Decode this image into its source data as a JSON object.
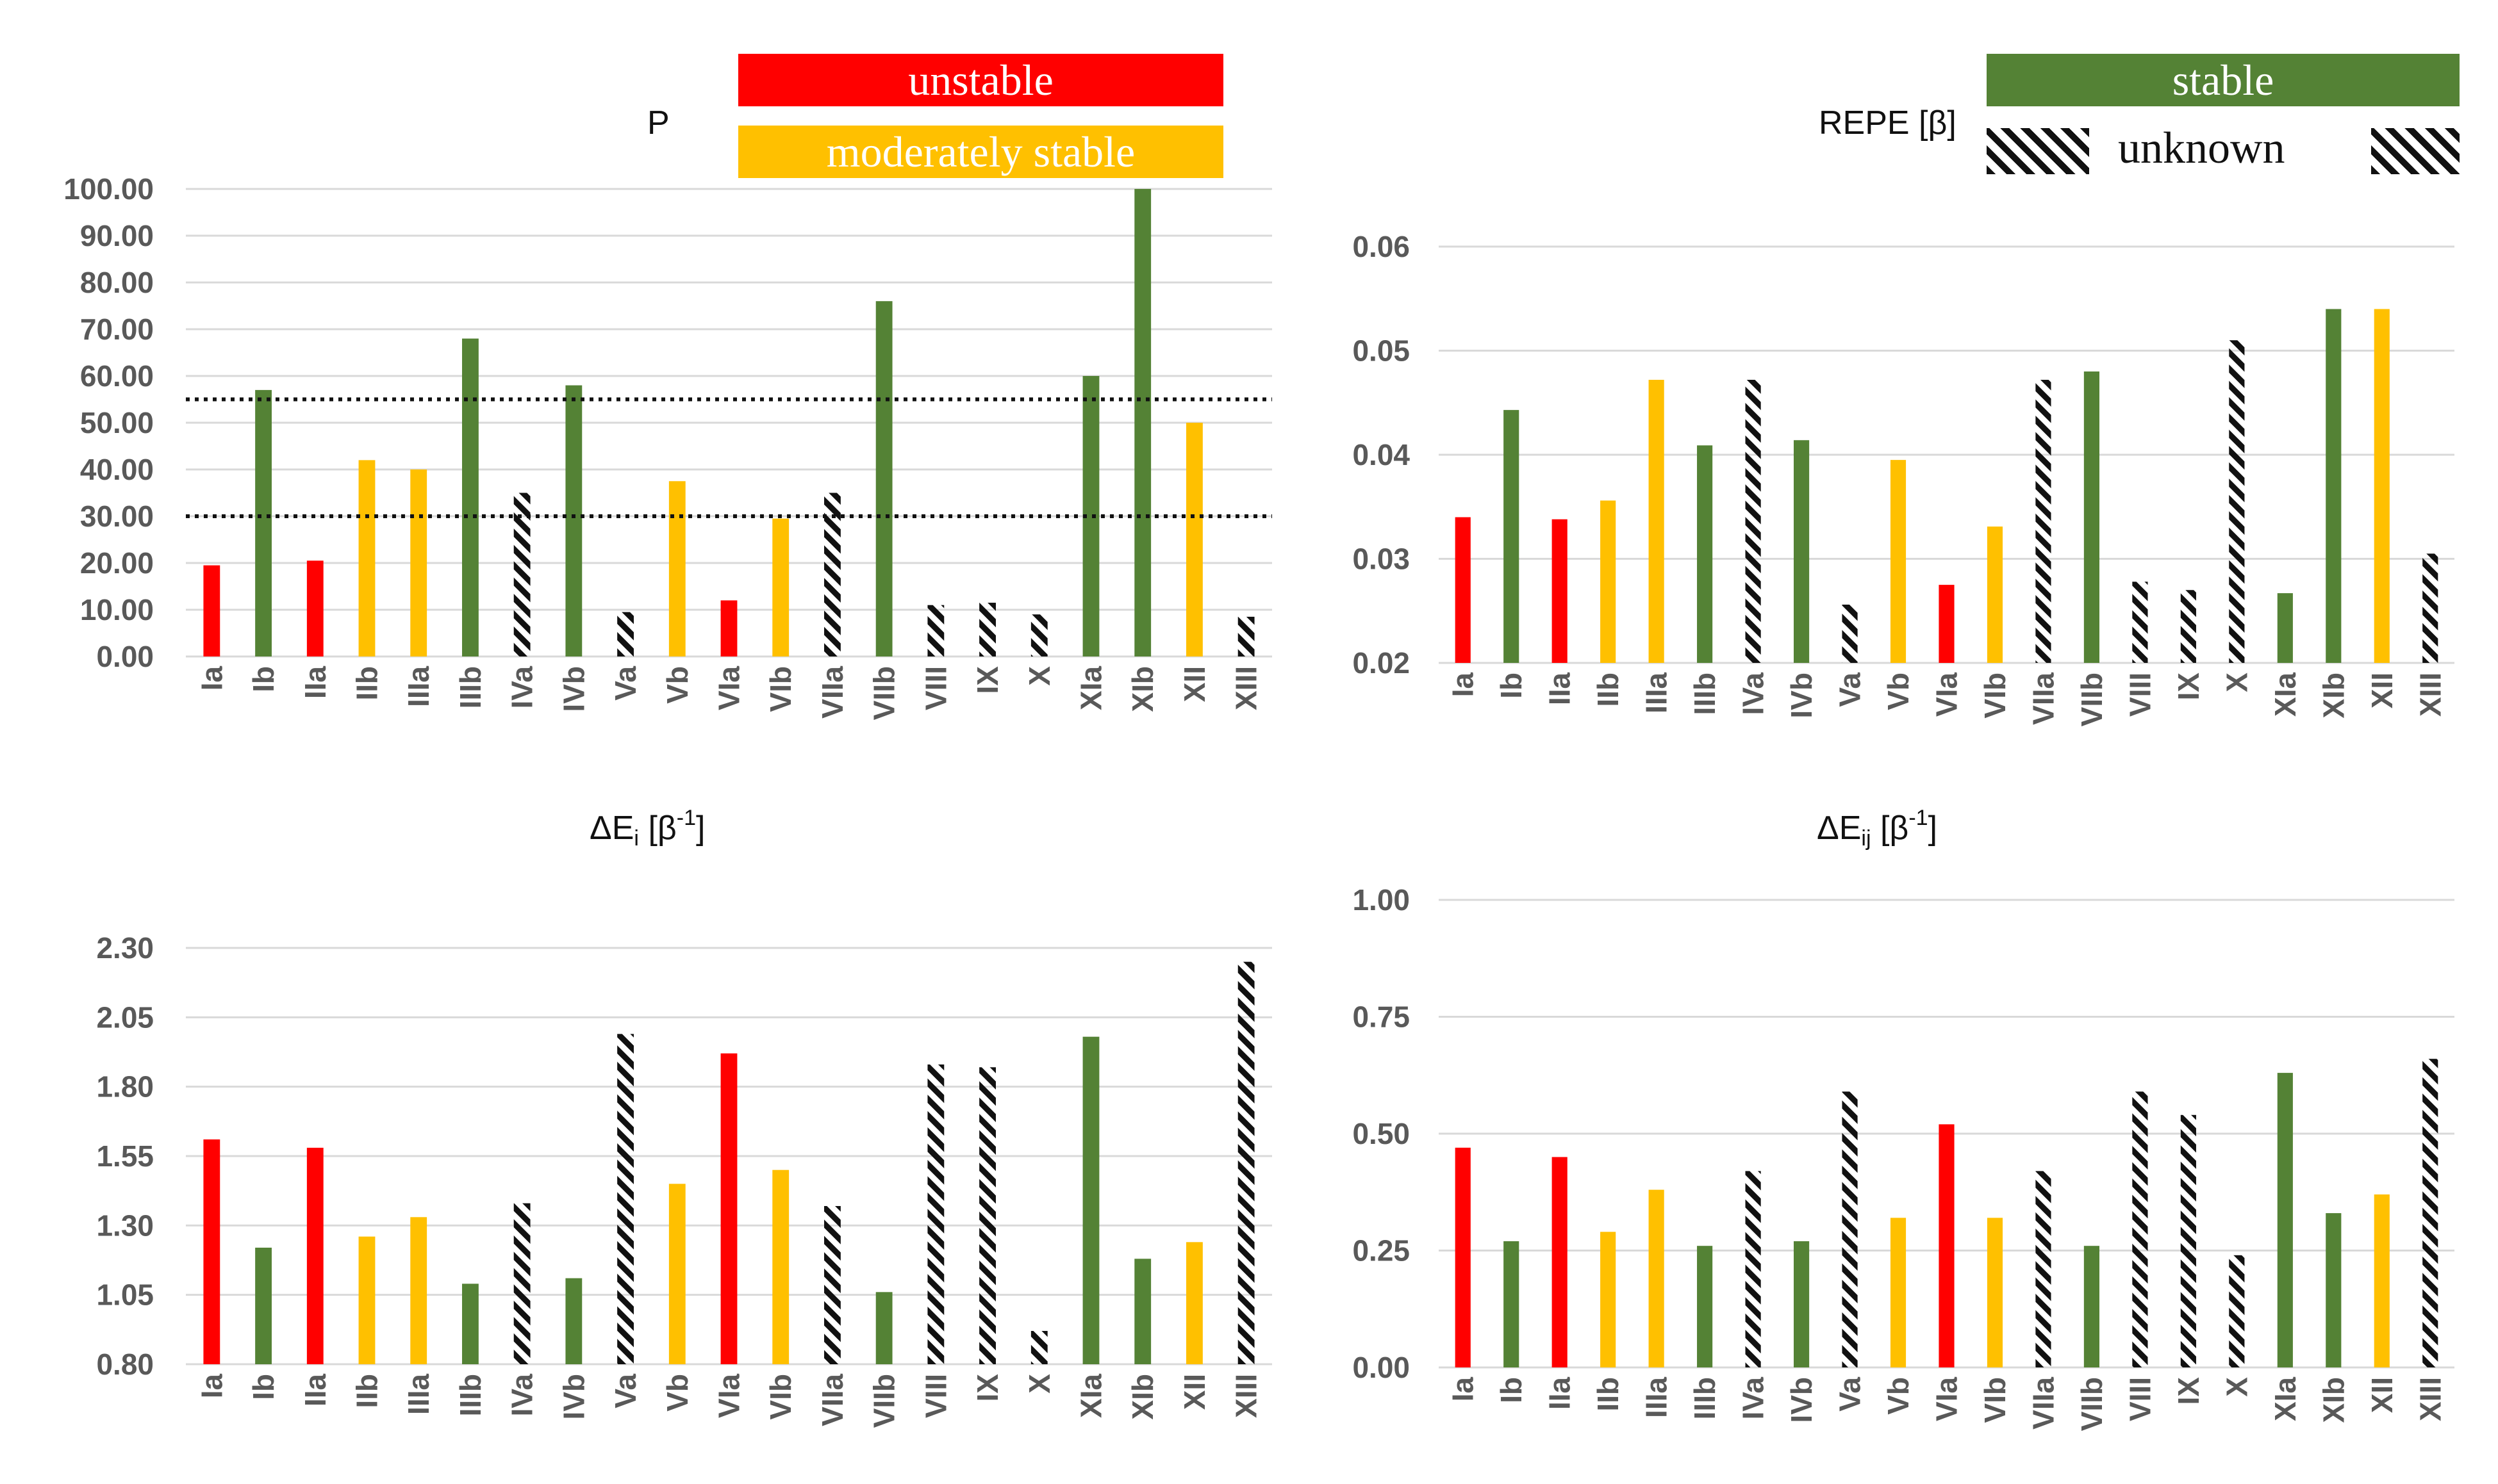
{
  "legend": {
    "unstable": "unstable",
    "moderately_stable": "moderately stable",
    "stable": "stable",
    "unknown": "unknown",
    "colors": {
      "unstable": "#ff0000",
      "moderate": "#ffc000",
      "stable": "#548235",
      "unknown": "#111111"
    }
  },
  "titles": {
    "p": "P",
    "repe": "REPE [β]",
    "dei_base": "ΔE",
    "dei_sub": "i",
    "deij_base": "ΔE",
    "deij_sub": "ij",
    "unit_open": "[β",
    "unit_sup": "-1",
    "unit_close": "]"
  },
  "chart_data": [
    {
      "id": "p",
      "type": "bar",
      "title": "P",
      "categories": [
        "Ia",
        "Ib",
        "IIa",
        "IIb",
        "IIIa",
        "IIIb",
        "IVa",
        "IVb",
        "Va",
        "Vb",
        "VIa",
        "VIb",
        "VIIa",
        "VIIb",
        "VIII",
        "IX",
        "X",
        "XIa",
        "XIb",
        "XII",
        "XIII"
      ],
      "values": [
        19.5,
        57,
        20.5,
        42,
        40,
        68,
        35,
        58,
        9.5,
        37.5,
        12,
        29.5,
        35,
        76,
        11,
        11.5,
        9,
        60,
        100,
        50,
        8.5
      ],
      "classes": [
        "unstable",
        "stable",
        "unstable",
        "moderate",
        "moderate",
        "stable",
        "unknown",
        "stable",
        "unknown",
        "moderate",
        "unstable",
        "moderate",
        "unknown",
        "stable",
        "unknown",
        "unknown",
        "unknown",
        "stable",
        "stable",
        "moderate",
        "unknown"
      ],
      "ylim": [
        0,
        100
      ],
      "yticks": [
        "0.00",
        "10.00",
        "20.00",
        "30.00",
        "40.00",
        "50.00",
        "60.00",
        "70.00",
        "80.00",
        "90.00",
        "100.00"
      ],
      "reference_lines": [
        30,
        55
      ],
      "xlabel": "",
      "ylabel": ""
    },
    {
      "id": "repe",
      "type": "bar",
      "title": "REPE [β]",
      "categories": [
        "Ia",
        "Ib",
        "IIa",
        "IIb",
        "IIIa",
        "IIIb",
        "IVa",
        "IVb",
        "Va",
        "Vb",
        "VIa",
        "VIb",
        "VIIa",
        "VIIb",
        "VIII",
        "IX",
        "X",
        "XIa",
        "XIb",
        "XII",
        "XIII"
      ],
      "values": [
        0.034,
        0.0443,
        0.0338,
        0.0356,
        0.0472,
        0.0409,
        0.0472,
        0.0414,
        0.0256,
        0.0395,
        0.0275,
        0.0331,
        0.0472,
        0.048,
        0.0278,
        0.027,
        0.051,
        0.0267,
        0.054,
        0.054,
        0.0305
      ],
      "classes": [
        "unstable",
        "stable",
        "unstable",
        "moderate",
        "moderate",
        "stable",
        "unknown",
        "stable",
        "unknown",
        "moderate",
        "unstable",
        "moderate",
        "unknown",
        "stable",
        "unknown",
        "unknown",
        "unknown",
        "stable",
        "stable",
        "moderate",
        "unknown"
      ],
      "ylim": [
        0.02,
        0.06
      ],
      "yticks": [
        "0.02",
        "0.03",
        "0.04",
        "0.05",
        "0.06"
      ],
      "xlabel": "",
      "ylabel": ""
    },
    {
      "id": "dei",
      "type": "bar",
      "title": "ΔEi [β-1]",
      "categories": [
        "Ia",
        "Ib",
        "IIa",
        "IIb",
        "IIIa",
        "IIIb",
        "IVa",
        "IVb",
        "Va",
        "Vb",
        "VIa",
        "VIb",
        "VIIa",
        "VIIb",
        "VIII",
        "IX",
        "X",
        "XIa",
        "XIb",
        "XII",
        "XIII"
      ],
      "values": [
        1.61,
        1.22,
        1.58,
        1.26,
        1.33,
        1.09,
        1.38,
        1.11,
        1.99,
        1.45,
        1.92,
        1.5,
        1.37,
        1.06,
        1.88,
        1.87,
        0.92,
        1.98,
        1.18,
        1.24,
        2.25
      ],
      "classes": [
        "unstable",
        "stable",
        "unstable",
        "moderate",
        "moderate",
        "stable",
        "unknown",
        "stable",
        "unknown",
        "moderate",
        "unstable",
        "moderate",
        "unknown",
        "stable",
        "unknown",
        "unknown",
        "unknown",
        "stable",
        "stable",
        "moderate",
        "unknown"
      ],
      "ylim": [
        0.8,
        2.3
      ],
      "yticks": [
        "0.80",
        "1.05",
        "1.30",
        "1.55",
        "1.80",
        "2.05",
        "2.30"
      ],
      "xlabel": "",
      "ylabel": ""
    },
    {
      "id": "deij",
      "type": "bar",
      "title": "ΔEij [β-1]",
      "categories": [
        "Ia",
        "Ib",
        "IIa",
        "IIb",
        "IIIa",
        "IIIb",
        "IVa",
        "IVb",
        "Va",
        "Vb",
        "VIa",
        "VIb",
        "VIIa",
        "VIIb",
        "VIII",
        "IX",
        "X",
        "XIa",
        "XIb",
        "XII",
        "XIII"
      ],
      "values": [
        0.47,
        0.27,
        0.45,
        0.29,
        0.38,
        0.26,
        0.42,
        0.27,
        0.59,
        0.32,
        0.52,
        0.32,
        0.42,
        0.26,
        0.59,
        0.54,
        0.24,
        0.63,
        0.33,
        0.37,
        0.66
      ],
      "classes": [
        "unstable",
        "stable",
        "unstable",
        "moderate",
        "moderate",
        "stable",
        "unknown",
        "stable",
        "unknown",
        "moderate",
        "unstable",
        "moderate",
        "unknown",
        "stable",
        "unknown",
        "unknown",
        "unknown",
        "stable",
        "stable",
        "moderate",
        "unknown"
      ],
      "ylim": [
        0,
        1.0
      ],
      "yticks": [
        "0.00",
        "0.25",
        "0.50",
        "0.75",
        "1.00"
      ],
      "xlabel": "",
      "ylabel": ""
    }
  ]
}
